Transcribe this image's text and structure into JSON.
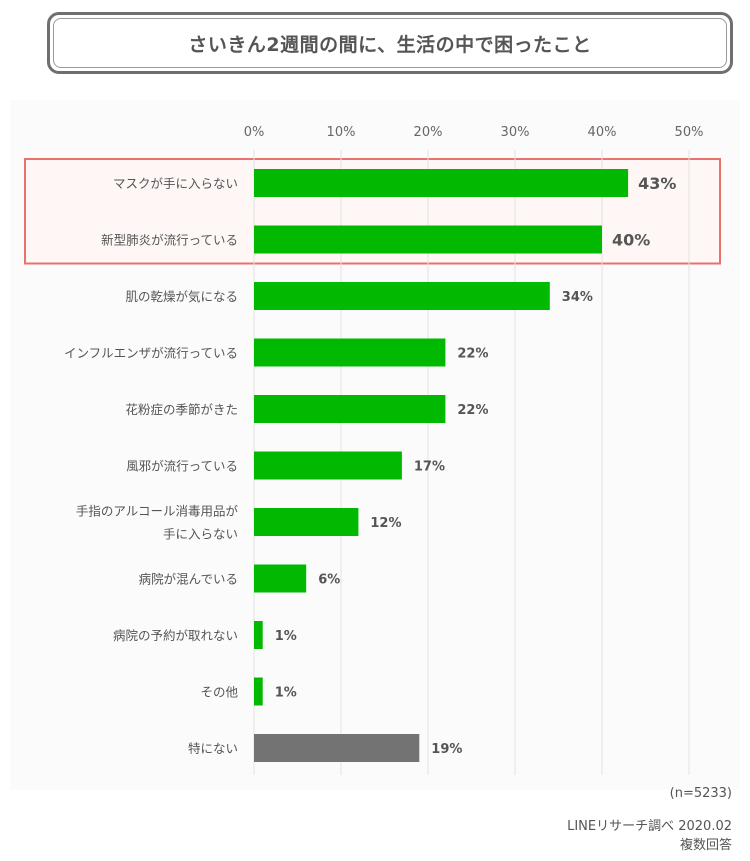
{
  "title": "さいきん2週間の間に、生活の中で困ったこと",
  "chart_data": {
    "type": "bar",
    "orientation": "horizontal",
    "title": "さいきん2週間の間に、生活の中で困ったこと",
    "x_ticks": [
      "0%",
      "10%",
      "20%",
      "30%",
      "40%",
      "50%"
    ],
    "xlim": [
      0,
      50
    ],
    "grid": true,
    "categories": [
      [
        "マスクが手に入らない"
      ],
      [
        "新型肺炎が流行っている"
      ],
      [
        "肌の乾燥が気になる"
      ],
      [
        "インフルエンザが流行っている"
      ],
      [
        "花粉症の季節がきた"
      ],
      [
        "風邪が流行っている"
      ],
      [
        "手指のアルコール消毒用品が",
        "手に入らない"
      ],
      [
        "病院が混んでいる"
      ],
      [
        "病院の予約が取れない"
      ],
      [
        "その他"
      ],
      [
        "特にない"
      ]
    ],
    "values": [
      43,
      40,
      34,
      22,
      22,
      17,
      12,
      6,
      1,
      1,
      19
    ],
    "value_labels": [
      "43%",
      "40%",
      "34%",
      "22%",
      "22%",
      "17%",
      "12%",
      "6%",
      "1%",
      "1%",
      "19%"
    ],
    "highlighted_indices": [
      0,
      1
    ],
    "colors": {
      "bar": "#00b900",
      "bar_other": "#737373",
      "highlight_border": "#e8736c",
      "highlight_fill": "#fff6f6"
    }
  },
  "notes": {
    "sample": "(n=5233)",
    "source": "LINEリサーチ調べ 2020.02",
    "type": "複数回答"
  }
}
